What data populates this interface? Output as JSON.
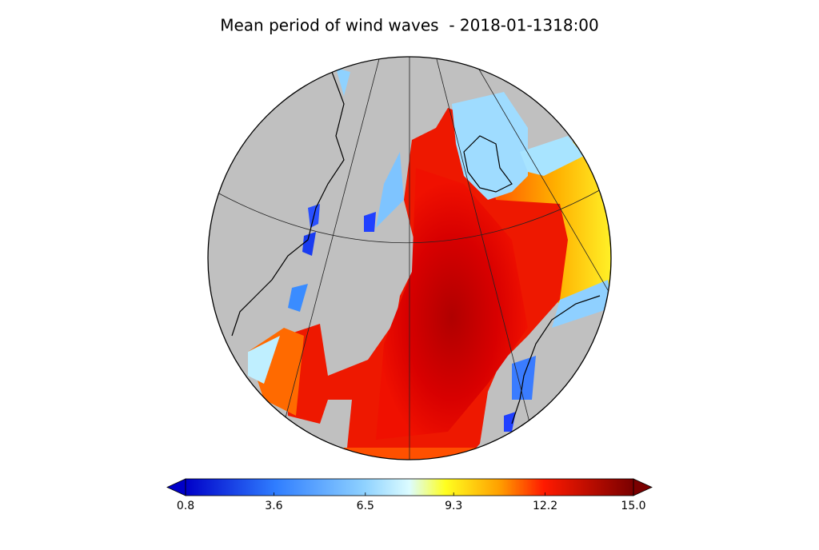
{
  "title": "Mean period of wind waves  - 2018-01-1318:00",
  "colorbar": {
    "lim": [
      0.8,
      15
    ],
    "ticks": [
      0.8,
      3.6,
      6.5,
      9.3,
      12.2,
      {
        "value": 15,
        "label": "15.0"
      }
    ]
  }
}
